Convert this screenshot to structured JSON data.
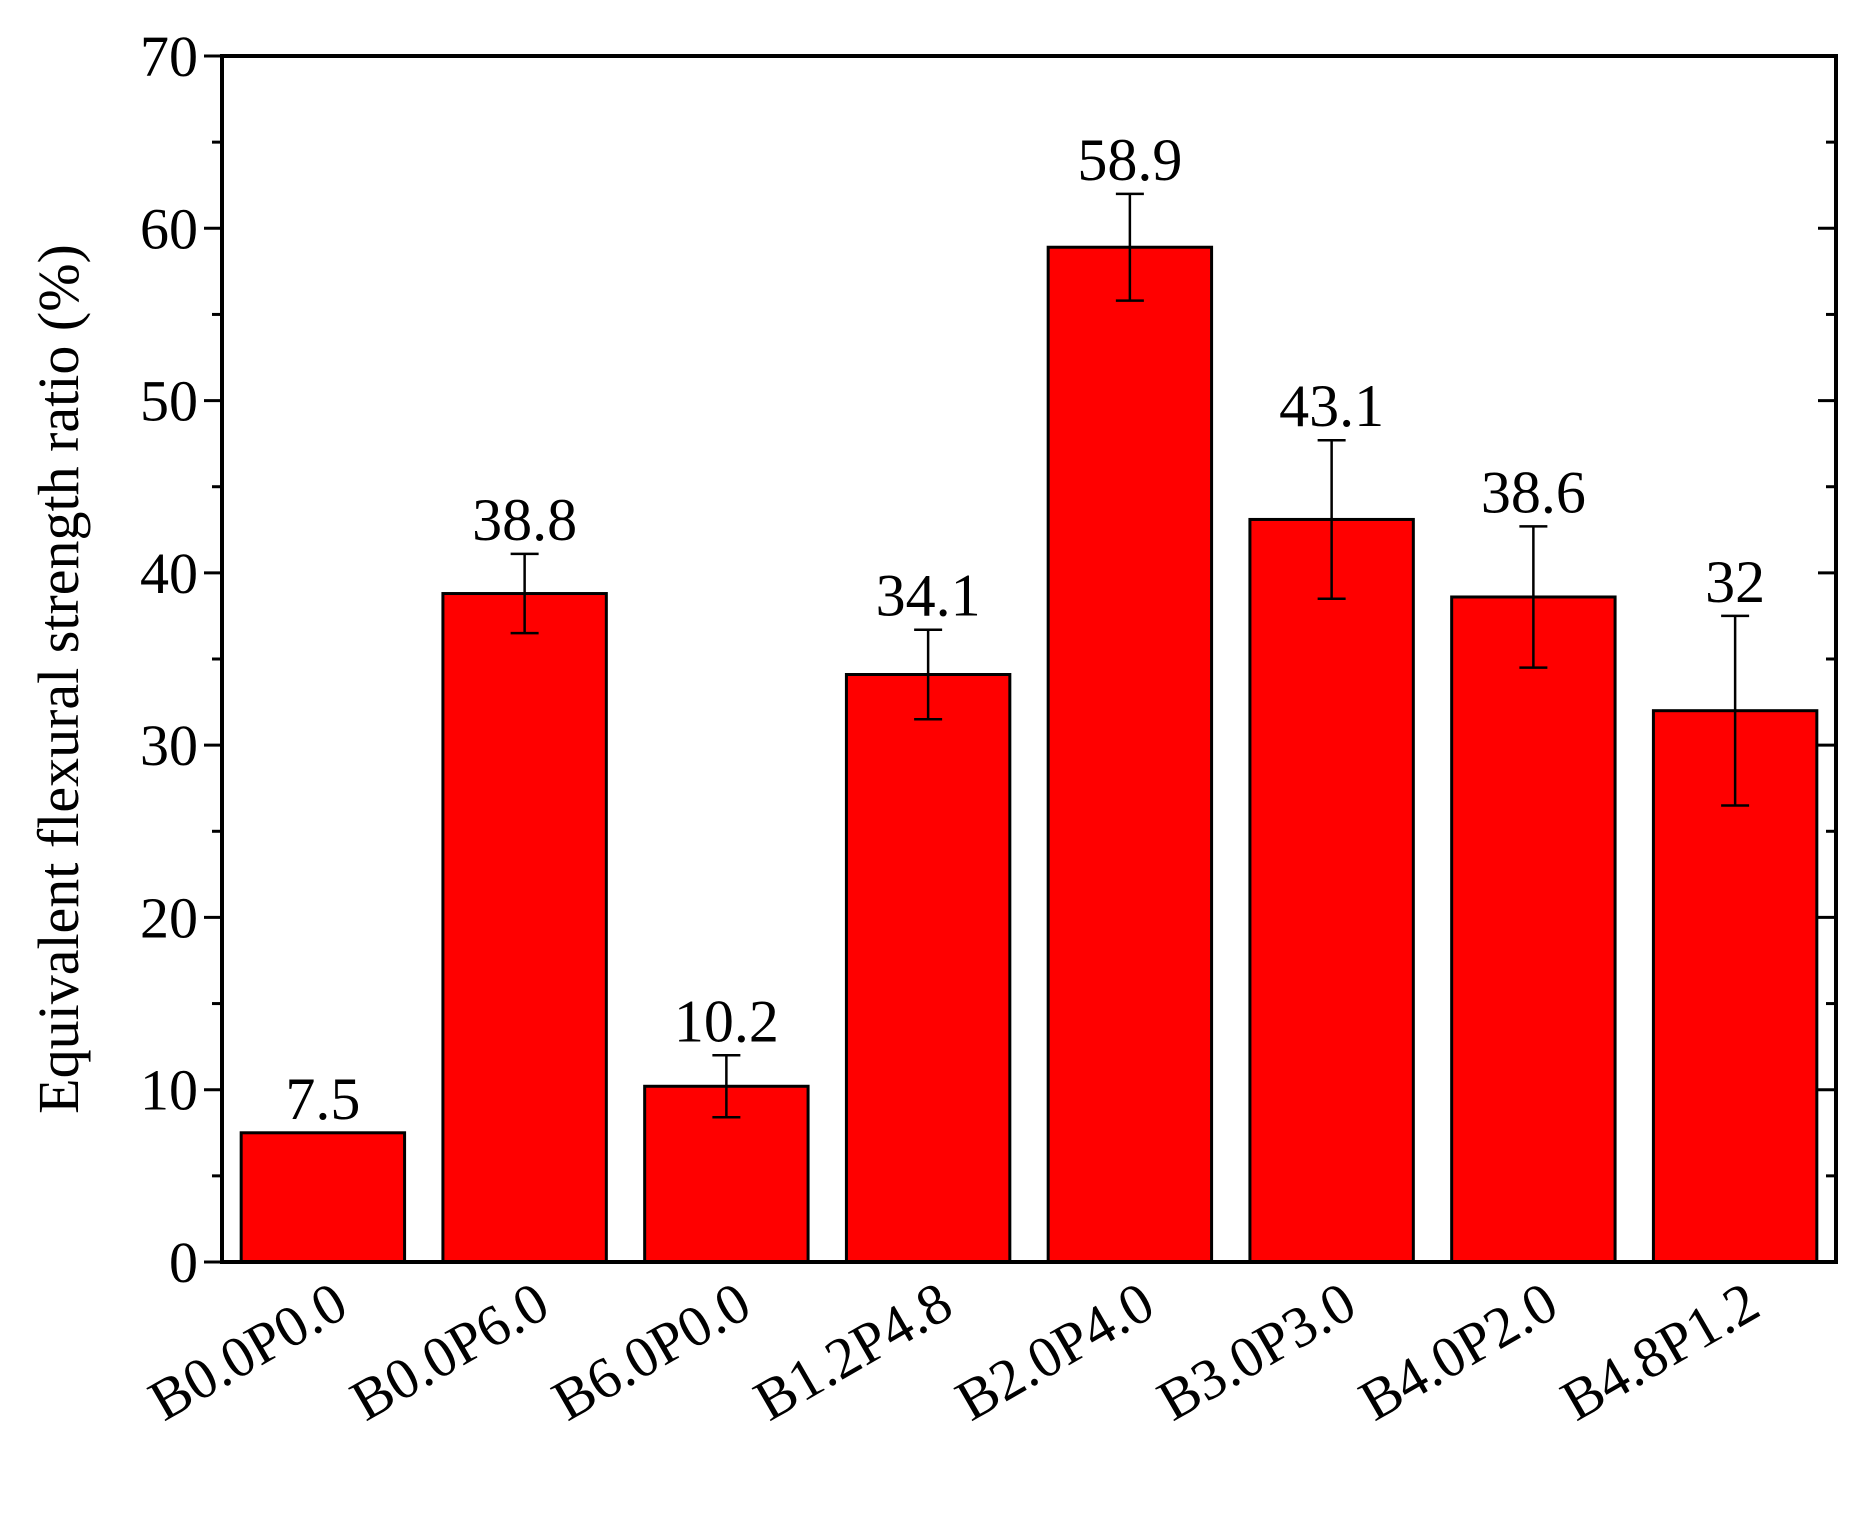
{
  "chart_data": {
    "type": "bar",
    "categories": [
      "B0.0P0.0",
      "B0.0P6.0",
      "B6.0P0.0",
      "B1.2P4.8",
      "B2.0P4.0",
      "B3.0P3.0",
      "B4.0P2.0",
      "B4.8P1.2"
    ],
    "values": [
      7.5,
      38.8,
      10.2,
      34.1,
      58.9,
      43.1,
      38.6,
      32
    ],
    "error_bars": [
      0,
      2.3,
      1.8,
      2.6,
      3.1,
      4.6,
      4.1,
      5.5
    ],
    "value_labels": [
      "7.5",
      "38.8",
      "10.2",
      "34.1",
      "58.9",
      "43.1",
      "38.6",
      "32"
    ],
    "ylabel": "Equivalent flexural strength ratio (%)",
    "xlabel": "",
    "ylim": [
      0,
      70
    ],
    "yticks": [
      0,
      10,
      20,
      30,
      40,
      50,
      60,
      70
    ],
    "ytick_labels": [
      "0",
      "10",
      "20",
      "30",
      "40",
      "50",
      "60",
      "70"
    ],
    "grid": false,
    "legend": "none",
    "bar_color": "#ff0000",
    "edge_color": "#000000"
  }
}
